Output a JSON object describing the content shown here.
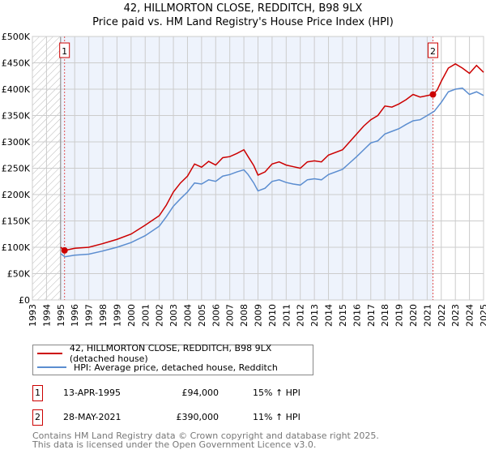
{
  "title_line1": "42, HILLMORTON CLOSE, REDDITCH, B98 9LX",
  "title_line2": "Price paid vs. HM Land Registry's House Price Index (HPI)",
  "chart_data": {
    "type": "line",
    "xlim": [
      1993,
      2025
    ],
    "ylim": [
      0,
      500000
    ],
    "x_ticks": [
      "1993",
      "1994",
      "1995",
      "1996",
      "1997",
      "1998",
      "1999",
      "2000",
      "2001",
      "2002",
      "2003",
      "2004",
      "2005",
      "2006",
      "2007",
      "2008",
      "2009",
      "2010",
      "2011",
      "2012",
      "2013",
      "2014",
      "2015",
      "2016",
      "2017",
      "2018",
      "2019",
      "2020",
      "2021",
      "2022",
      "2023",
      "2024",
      "2025"
    ],
    "y_ticks": [
      {
        "v": 0,
        "label": "£0"
      },
      {
        "v": 50000,
        "label": "£50K"
      },
      {
        "v": 100000,
        "label": "£100K"
      },
      {
        "v": 150000,
        "label": "£150K"
      },
      {
        "v": 200000,
        "label": "£200K"
      },
      {
        "v": 250000,
        "label": "£250K"
      },
      {
        "v": 300000,
        "label": "£300K"
      },
      {
        "v": 350000,
        "label": "£350K"
      },
      {
        "v": 400000,
        "label": "£400K"
      },
      {
        "v": 450000,
        "label": "£450K"
      },
      {
        "v": 500000,
        "label": "£500K"
      }
    ],
    "grid": true,
    "series": [
      {
        "name": "42, HILLMORTON CLOSE, REDDITCH, B98 9LX (detached house)",
        "color": "#cc0000",
        "x": [
          1995,
          1995.3,
          1996,
          1997,
          1998,
          1999,
          2000,
          2001,
          2002,
          2002.5,
          2003,
          2003.5,
          2004,
          2004.5,
          2005,
          2005.5,
          2006,
          2006.5,
          2007,
          2007.5,
          2008,
          2008.3,
          2008.7,
          2009,
          2009.5,
          2010,
          2010.5,
          2011,
          2011.5,
          2012,
          2012.5,
          2013,
          2013.5,
          2014,
          2015,
          2015.5,
          2016,
          2016.5,
          2017,
          2017.5,
          2018,
          2018.5,
          2019,
          2019.5,
          2020,
          2020.5,
          2021.4,
          2021.7,
          2022,
          2022.5,
          2023,
          2023.5,
          2024,
          2024.5,
          2025
        ],
        "y": [
          100000,
          94000,
          98000,
          100000,
          107000,
          115000,
          125000,
          142000,
          160000,
          180000,
          205000,
          222000,
          235000,
          258000,
          252000,
          263000,
          256000,
          270000,
          272000,
          278000,
          285000,
          272000,
          255000,
          237000,
          243000,
          258000,
          262000,
          256000,
          253000,
          250000,
          262000,
          264000,
          262000,
          275000,
          285000,
          300000,
          315000,
          330000,
          342000,
          350000,
          368000,
          366000,
          372000,
          380000,
          390000,
          385000,
          390000,
          398000,
          415000,
          440000,
          448000,
          440000,
          430000,
          445000,
          432000
        ]
      },
      {
        "name": "HPI: Average price, detached house, Redditch",
        "color": "#5b8dd0",
        "x": [
          1995,
          1995.3,
          1996,
          1997,
          1998,
          1999,
          2000,
          2001,
          2002,
          2002.5,
          2003,
          2003.5,
          2004,
          2004.5,
          2005,
          2005.5,
          2006,
          2006.5,
          2007,
          2007.5,
          2008,
          2008.3,
          2008.7,
          2009,
          2009.5,
          2010,
          2010.5,
          2011,
          2011.5,
          2012,
          2012.5,
          2013,
          2013.5,
          2014,
          2015,
          2015.5,
          2016,
          2016.5,
          2017,
          2017.5,
          2018,
          2018.5,
          2019,
          2019.5,
          2020,
          2020.5,
          2021,
          2021.5,
          2022,
          2022.5,
          2023,
          2023.5,
          2024,
          2024.5,
          2025
        ],
        "y": [
          88000,
          82000,
          85000,
          87000,
          93000,
          100000,
          109000,
          122000,
          140000,
          158000,
          178000,
          192000,
          205000,
          222000,
          220000,
          228000,
          225000,
          235000,
          238000,
          243000,
          247000,
          238000,
          222000,
          207000,
          212000,
          225000,
          228000,
          223000,
          220000,
          218000,
          228000,
          230000,
          228000,
          238000,
          248000,
          260000,
          272000,
          285000,
          298000,
          302000,
          315000,
          320000,
          325000,
          333000,
          340000,
          342000,
          350000,
          358000,
          375000,
          395000,
          400000,
          402000,
          390000,
          395000,
          388000
        ]
      }
    ],
    "sales": [
      {
        "id": "1",
        "x": 1995.28,
        "y": 94000
      },
      {
        "id": "2",
        "x": 2021.41,
        "y": 390000
      }
    ]
  },
  "legend": [
    "42, HILLMORTON CLOSE, REDDITCH, B98 9LX (detached house)",
    "HPI: Average price, detached house, Redditch"
  ],
  "table": [
    {
      "id": "1",
      "date": "13-APR-1995",
      "price": "£94,000",
      "hpi": "15% ↑ HPI"
    },
    {
      "id": "2",
      "date": "28-MAY-2021",
      "price": "£390,000",
      "hpi": "11% ↑ HPI"
    }
  ],
  "footer": [
    "Contains HM Land Registry data © Crown copyright and database right 2025.",
    "This data is licensed under the Open Government Licence v3.0."
  ]
}
